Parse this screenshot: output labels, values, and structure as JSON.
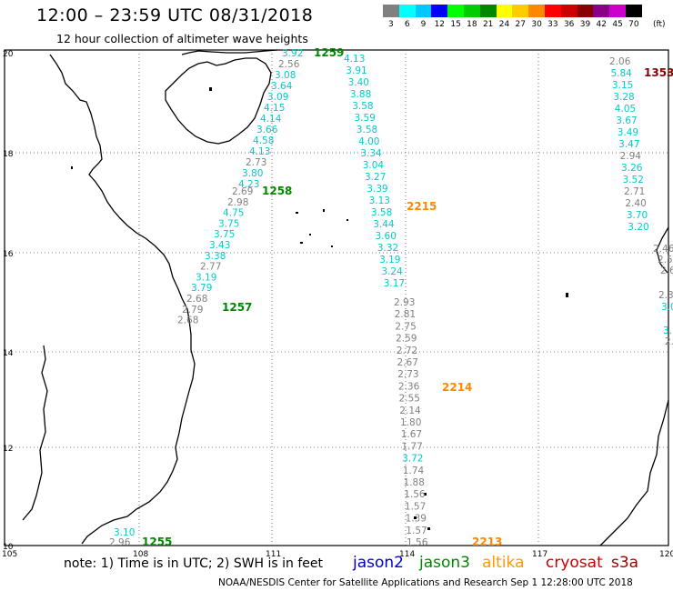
{
  "header": {
    "title": "12:00 – 23:59 UTC 08/31/2018",
    "subtitle": "12 hour collection of altimeter wave heights"
  },
  "color_scale": {
    "unit": "(ft)",
    "swatches": [
      {
        "label": "3",
        "color": "#808080"
      },
      {
        "label": "6",
        "color": "#00ffff"
      },
      {
        "label": "9",
        "color": "#00c8ff"
      },
      {
        "label": "12",
        "color": "#0000ff"
      },
      {
        "label": "15",
        "color": "#00ff00"
      },
      {
        "label": "18",
        "color": "#00cc00"
      },
      {
        "label": "21",
        "color": "#008800"
      },
      {
        "label": "24",
        "color": "#ffff00"
      },
      {
        "label": "27",
        "color": "#ffcc00"
      },
      {
        "label": "30",
        "color": "#ff8800"
      },
      {
        "label": "33",
        "color": "#ff0000"
      },
      {
        "label": "36",
        "color": "#cc0000"
      },
      {
        "label": "39",
        "color": "#880000"
      },
      {
        "label": "42",
        "color": "#880088"
      },
      {
        "label": "45",
        "color": "#cc00cc"
      },
      {
        "label": "70",
        "color": "#000000"
      }
    ]
  },
  "axes": {
    "lon_ticks": [
      "105",
      "108",
      "111",
      "114",
      "117",
      "120"
    ],
    "lat_ticks": [
      "20",
      "18",
      "16",
      "14",
      "12",
      "10"
    ]
  },
  "tracks": [
    {
      "label": "1259",
      "label_color": "#008800",
      "points": [
        {
          "v": "3.92",
          "c": "#00cccc"
        },
        {
          "v": "2.56",
          "c": "#808080"
        },
        {
          "v": "3.08",
          "c": "#00cccc"
        },
        {
          "v": "3.64",
          "c": "#00cccc"
        },
        {
          "v": "3.09",
          "c": "#00cccc"
        },
        {
          "v": "4.15",
          "c": "#00cccc"
        },
        {
          "v": "4.14",
          "c": "#00cccc"
        },
        {
          "v": "3.66",
          "c": "#00cccc"
        },
        {
          "v": "4.58",
          "c": "#00cccc"
        },
        {
          "v": "4.13",
          "c": "#00cccc"
        },
        {
          "v": "2.73",
          "c": "#808080"
        },
        {
          "v": "3.80",
          "c": "#00cccc"
        },
        {
          "v": "4.23",
          "c": "#00cccc"
        }
      ]
    },
    {
      "label": "1258",
      "label_color": "#008800",
      "points": [
        {
          "v": "2.69",
          "c": "#808080"
        },
        {
          "v": "2.98",
          "c": "#808080"
        },
        {
          "v": "4.75",
          "c": "#00cccc"
        },
        {
          "v": "3.75",
          "c": "#00cccc"
        },
        {
          "v": "3.75",
          "c": "#00cccc"
        },
        {
          "v": "3.43",
          "c": "#00cccc"
        },
        {
          "v": "3.38",
          "c": "#00cccc"
        },
        {
          "v": "2.77",
          "c": "#808080"
        },
        {
          "v": "3.19",
          "c": "#00cccc"
        },
        {
          "v": "3.79",
          "c": "#00cccc"
        },
        {
          "v": "2.68",
          "c": "#808080"
        },
        {
          "v": "2.79",
          "c": "#808080"
        },
        {
          "v": "2.68",
          "c": "#808080"
        }
      ]
    },
    {
      "label": "1257",
      "label_color": "#008800",
      "points": []
    },
    {
      "label": "2215",
      "label_color": "#ff8800",
      "points": [
        {
          "v": "4.13",
          "c": "#00cccc"
        },
        {
          "v": "3.91",
          "c": "#00cccc"
        },
        {
          "v": "3.40",
          "c": "#00cccc"
        },
        {
          "v": "3.88",
          "c": "#00cccc"
        },
        {
          "v": "3.58",
          "c": "#00cccc"
        },
        {
          "v": "3.59",
          "c": "#00cccc"
        },
        {
          "v": "3.58",
          "c": "#00cccc"
        },
        {
          "v": "4.00",
          "c": "#00cccc"
        },
        {
          "v": "3.34",
          "c": "#00cccc"
        },
        {
          "v": "3.04",
          "c": "#00cccc"
        },
        {
          "v": "3.27",
          "c": "#00cccc"
        },
        {
          "v": "3.39",
          "c": "#00cccc"
        },
        {
          "v": "3.13",
          "c": "#00cccc"
        },
        {
          "v": "3.58",
          "c": "#00cccc"
        },
        {
          "v": "3.44",
          "c": "#00cccc"
        },
        {
          "v": "3.60",
          "c": "#00cccc"
        },
        {
          "v": "3.32",
          "c": "#00cccc"
        },
        {
          "v": "3.19",
          "c": "#00cccc"
        },
        {
          "v": "3.24",
          "c": "#00cccc"
        },
        {
          "v": "3.17",
          "c": "#00cccc"
        }
      ]
    },
    {
      "label": "2214",
      "label_color": "#ff8800",
      "points": [
        {
          "v": "2.93",
          "c": "#808080"
        },
        {
          "v": "2.81",
          "c": "#808080"
        },
        {
          "v": "2.75",
          "c": "#808080"
        },
        {
          "v": "2.59",
          "c": "#808080"
        },
        {
          "v": "2.72",
          "c": "#808080"
        },
        {
          "v": "2.67",
          "c": "#808080"
        },
        {
          "v": "2.73",
          "c": "#808080"
        },
        {
          "v": "2.36",
          "c": "#808080"
        },
        {
          "v": "2.55",
          "c": "#808080"
        },
        {
          "v": "2.14",
          "c": "#808080"
        },
        {
          "v": "1.80",
          "c": "#808080"
        },
        {
          "v": "1.67",
          "c": "#808080"
        },
        {
          "v": "1.77",
          "c": "#808080"
        },
        {
          "v": "3.72",
          "c": "#00cccc"
        },
        {
          "v": "1.74",
          "c": "#808080"
        },
        {
          "v": "1.88",
          "c": "#808080"
        },
        {
          "v": "1.56",
          "c": "#808080"
        },
        {
          "v": "1.57",
          "c": "#808080"
        },
        {
          "v": "1.39",
          "c": "#808080"
        },
        {
          "v": "1.57",
          "c": "#808080"
        },
        {
          "v": "1.56",
          "c": "#808080"
        }
      ]
    },
    {
      "label": "2213",
      "label_color": "#ff8800",
      "points": []
    },
    {
      "label": "1353",
      "label_color": "#880000",
      "points": [
        {
          "v": "2.06",
          "c": "#808080"
        },
        {
          "v": "5.84",
          "c": "#00cccc"
        },
        {
          "v": "3.15",
          "c": "#00cccc"
        },
        {
          "v": "3.28",
          "c": "#00cccc"
        },
        {
          "v": "4.05",
          "c": "#00cccc"
        },
        {
          "v": "3.67",
          "c": "#00cccc"
        },
        {
          "v": "3.49",
          "c": "#00cccc"
        },
        {
          "v": "3.47",
          "c": "#00cccc"
        },
        {
          "v": "2.94",
          "c": "#808080"
        },
        {
          "v": "3.26",
          "c": "#00cccc"
        },
        {
          "v": "3.52",
          "c": "#00cccc"
        },
        {
          "v": "2.71",
          "c": "#808080"
        },
        {
          "v": "2.40",
          "c": "#808080"
        },
        {
          "v": "3.70",
          "c": "#00cccc"
        },
        {
          "v": "3.20",
          "c": "#00cccc"
        }
      ]
    },
    {
      "label": "1255",
      "label_color": "#008800",
      "points": [
        {
          "v": "3.10",
          "c": "#00cccc"
        },
        {
          "v": "2.96",
          "c": "#808080"
        }
      ]
    }
  ],
  "edge_fragments": [
    "2.46",
    "2.5",
    "2.6",
    "2.3",
    "3.0",
    "3.",
    "2."
  ],
  "note": "note:  1) Time is in UTC;  2) SWH is in feet",
  "legend": [
    {
      "name": "jason2",
      "color": "#0000cc"
    },
    {
      "name": "jason3",
      "color": "#008800"
    },
    {
      "name": "altika",
      "color": "#ff9900"
    },
    {
      "name": "cryosat",
      "color": "#cc0000"
    },
    {
      "name": "s3a",
      "color": "#990000"
    }
  ],
  "footer": "NOAA/NESDIS Center for Satellite Applications and Research   Sep  1 12:28:00 UTC 2018"
}
